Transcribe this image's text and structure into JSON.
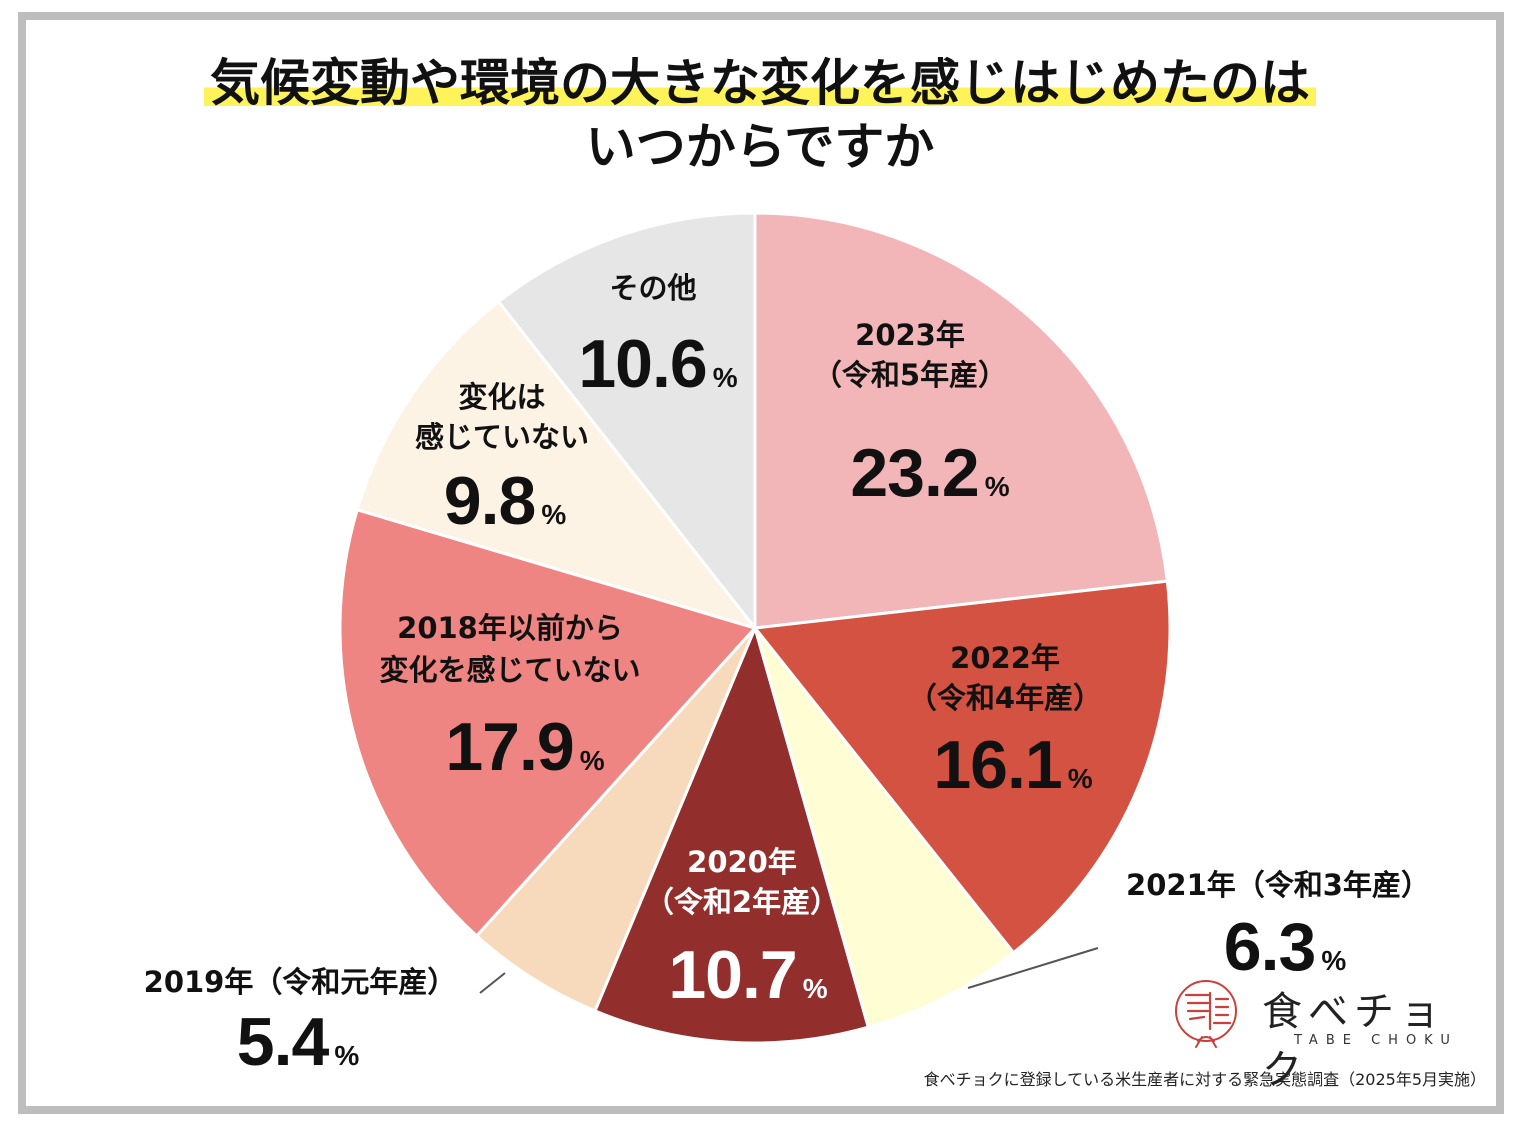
{
  "title": {
    "line1": "気候変動や環境の大きな変化を感じはじめたのは",
    "line2": "いつからですか"
  },
  "percent_sign": "%",
  "chart_data": {
    "type": "pie",
    "title": "気候変動や環境の大きな変化を感じはじめたのは いつからですか",
    "start": "12 o'clock",
    "direction": "clockwise",
    "slices": [
      {
        "label": "2023年（令和5年産）",
        "value": 23.2,
        "value_text": "23.2",
        "color": "#f2b6b8"
      },
      {
        "label": "2022年（令和4年産）",
        "value": 16.1,
        "value_text": "16.1",
        "color": "#d35241"
      },
      {
        "label": "2021年（令和3年産）",
        "value": 6.3,
        "value_text": "6.3",
        "color": "#fffdd3"
      },
      {
        "label": "2020年（令和2年産）",
        "value": 10.7,
        "value_text": "10.7",
        "color": "#922f2d"
      },
      {
        "label": "2019年（令和元年産）",
        "value": 5.4,
        "value_text": "5.4",
        "color": "#f7dabc"
      },
      {
        "label": "2018年以前から変化を感じていない",
        "value": 17.9,
        "value_text": "17.9",
        "color": "#ee8582"
      },
      {
        "label": "変化は感じていない",
        "value": 9.8,
        "value_text": "9.8",
        "color": "#fdf3e5"
      },
      {
        "label": "その他",
        "value": 10.6,
        "value_text": "10.6",
        "color": "#e6e6e6"
      }
    ]
  },
  "labels": {
    "s2023": {
      "line1": "2023年",
      "line2": "（令和5年産）"
    },
    "s2022": {
      "line1": "2022年",
      "line2": "（令和4年産）"
    },
    "s2021": {
      "line1": "2021年（令和3年産）"
    },
    "s2020": {
      "line1": "2020年",
      "line2": "（令和2年産）"
    },
    "s2019": {
      "line1": "2019年（令和元年産）"
    },
    "s2018": {
      "line1": "2018年以前から",
      "line2": "変化を感じていない"
    },
    "none": {
      "line1": "変化は",
      "line2": "感じていない"
    },
    "other": {
      "line1": "その他"
    }
  },
  "logo": {
    "text": "食べチョク",
    "sub": "TABE CHOKU",
    "color": "#c9413c"
  },
  "source": "食べチョクに登録している米生産者に対する緊急実態調査（2025年5月実施）"
}
